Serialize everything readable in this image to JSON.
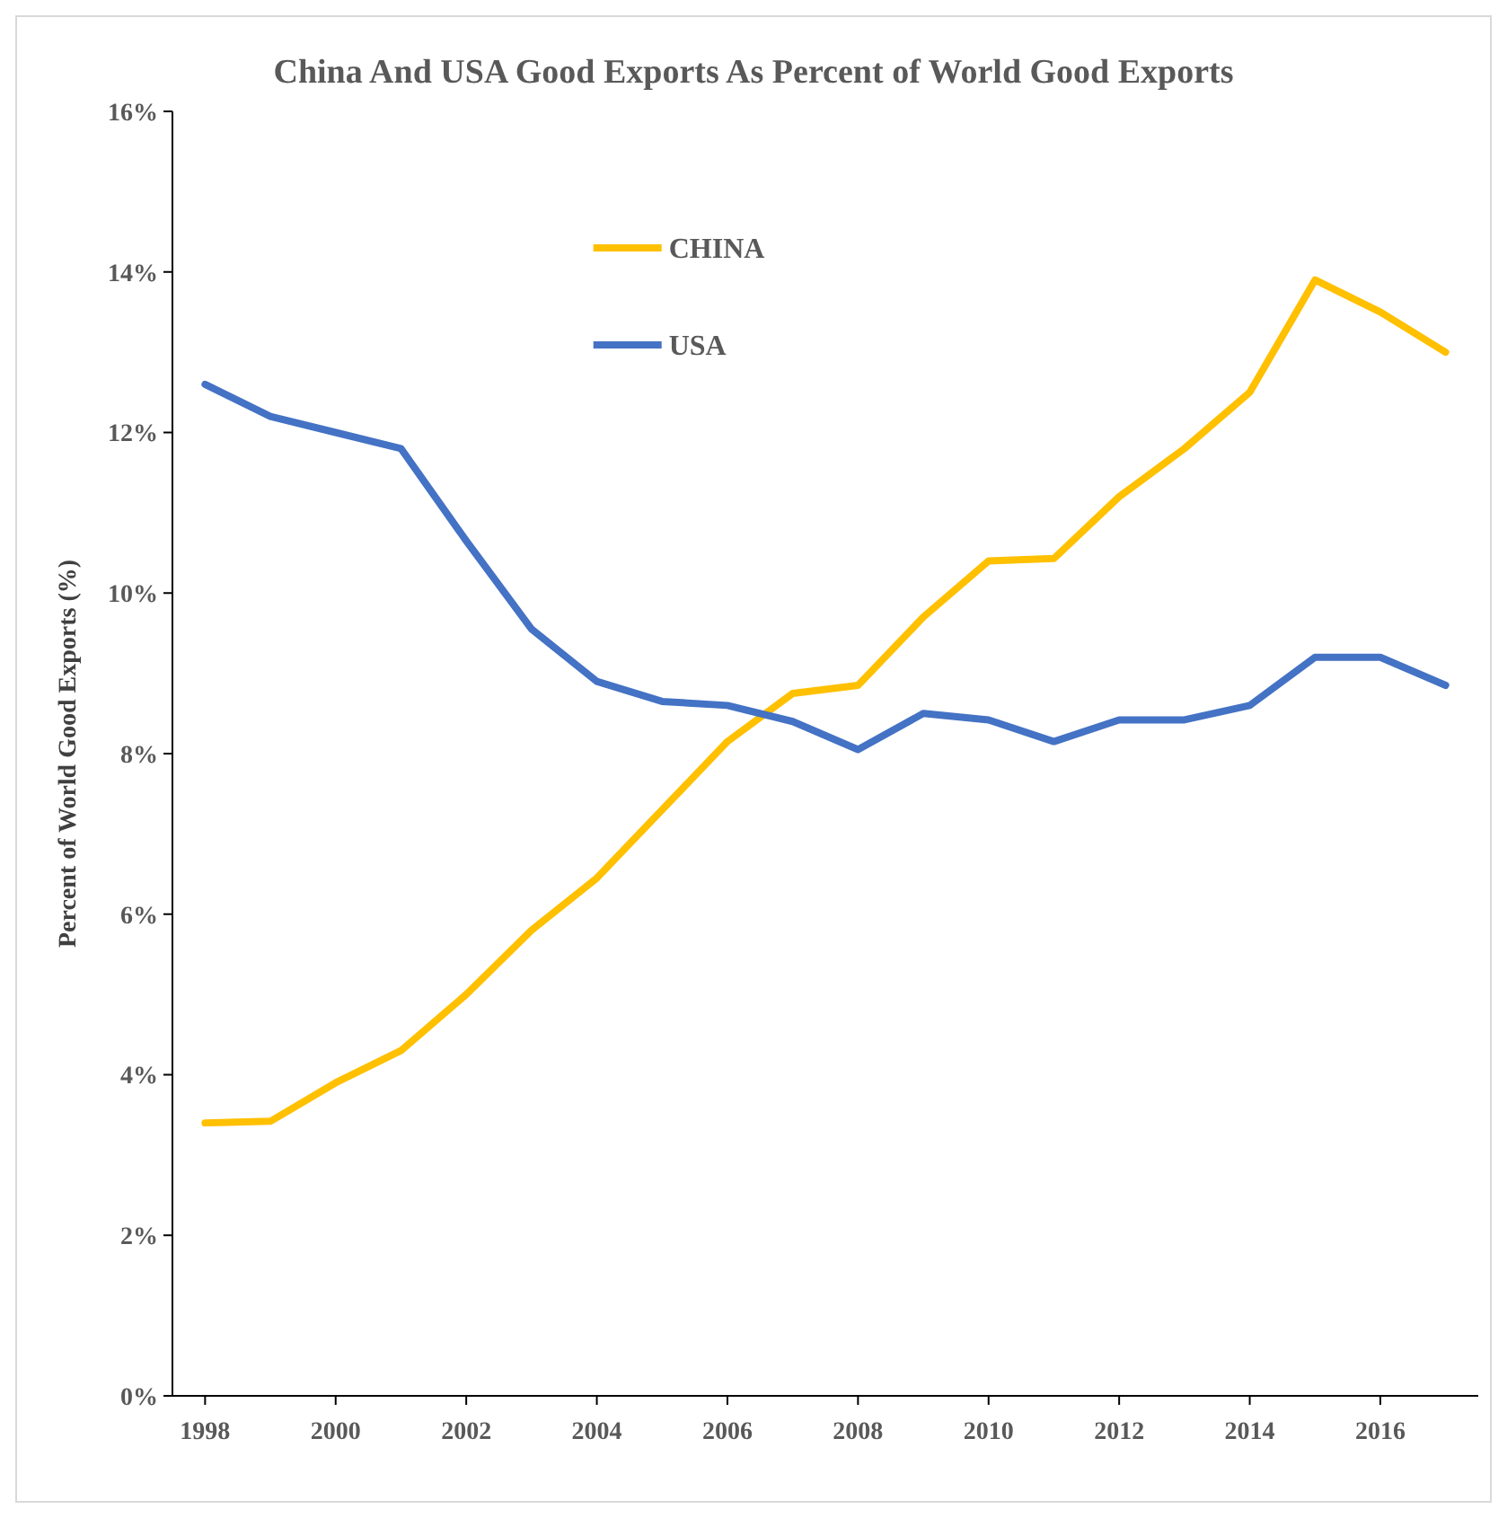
{
  "chart_data": {
    "type": "line",
    "title": "China And USA Good Exports As Percent of World Good Exports",
    "ylabel": "Percent of World  Good Exports (%)",
    "x": [
      1998,
      1999,
      2000,
      2001,
      2002,
      2003,
      2004,
      2005,
      2006,
      2007,
      2008,
      2009,
      2010,
      2011,
      2012,
      2013,
      2014,
      2015,
      2016,
      2017
    ],
    "series": [
      {
        "name": "CHINA",
        "color": "#ffc000",
        "values": [
          3.4,
          3.42,
          3.9,
          4.3,
          5.0,
          5.8,
          6.45,
          7.3,
          8.15,
          8.75,
          8.85,
          9.7,
          10.4,
          10.43,
          11.2,
          11.8,
          12.5,
          13.9,
          13.5,
          13.0
        ]
      },
      {
        "name": "USA",
        "color": "#4472c4",
        "values": [
          12.6,
          12.2,
          12.0,
          11.8,
          10.65,
          9.55,
          8.9,
          8.65,
          8.6,
          8.4,
          8.05,
          8.5,
          8.42,
          8.15,
          8.42,
          8.42,
          8.6,
          9.2,
          9.2,
          8.85
        ]
      }
    ],
    "xlim": [
      1997.5,
      2017.5
    ],
    "xticks": [
      1998,
      2000,
      2002,
      2004,
      2006,
      2008,
      2010,
      2012,
      2014,
      2016
    ],
    "ylim": [
      0,
      16
    ],
    "yticks": [
      {
        "value": 0,
        "label": "0%"
      },
      {
        "value": 2,
        "label": "2%"
      },
      {
        "value": 4,
        "label": "4%"
      },
      {
        "value": 6,
        "label": "6%"
      },
      {
        "value": 8,
        "label": "8%"
      },
      {
        "value": 10,
        "label": "10%"
      },
      {
        "value": 12,
        "label": "12%"
      },
      {
        "value": 14,
        "label": "14%"
      },
      {
        "value": 16,
        "label": "16%"
      }
    ],
    "grid": false,
    "legend": "top",
    "marker": "none",
    "line_style": "solid"
  }
}
